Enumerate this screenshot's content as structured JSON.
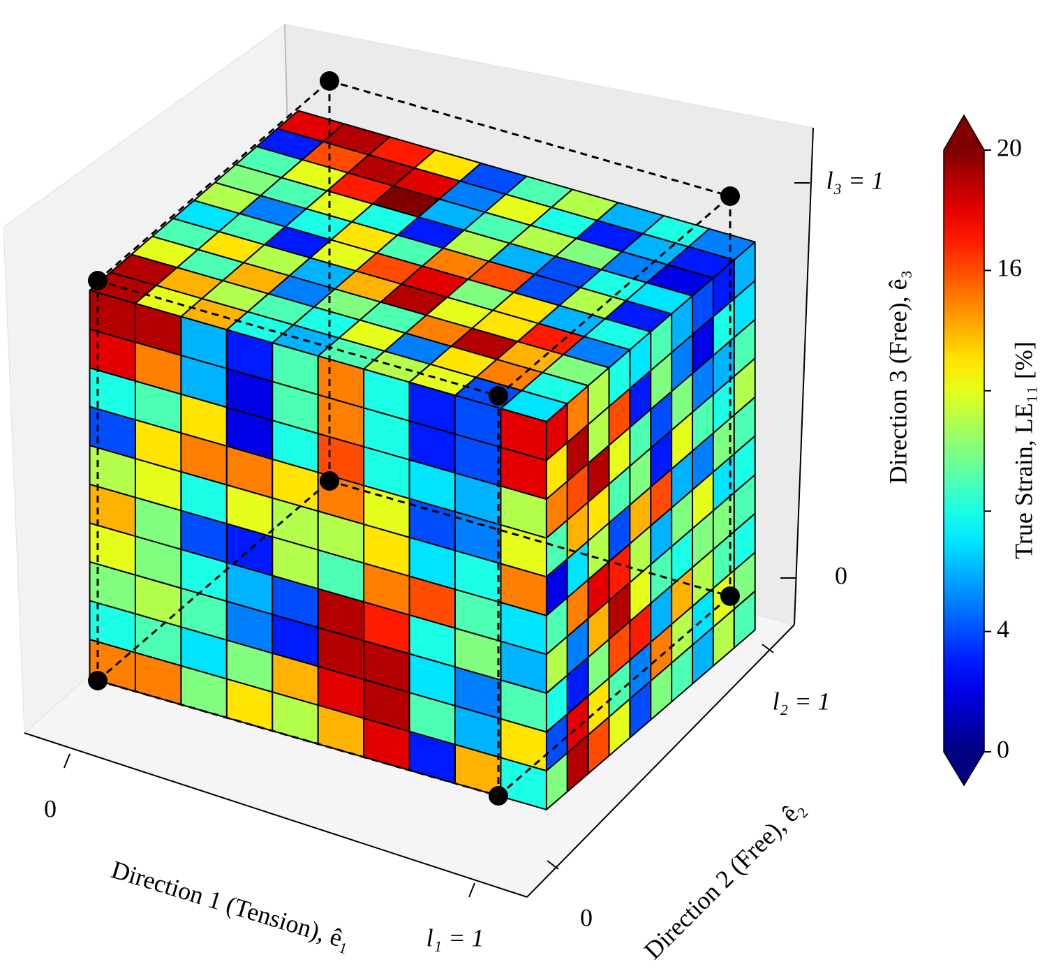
{
  "chart_data": {
    "type": "mesh3d",
    "xlabel": "Direction 1 (Tension), ê₁",
    "ylabel": "Direction 2 (Free), ê₂",
    "zlabel": "Direction 3 (Free), ê₃",
    "xlim": [
      0,
      1
    ],
    "ylim": [
      0,
      1
    ],
    "zlim": [
      0,
      1
    ],
    "xticks": [
      0,
      {
        "value": 1,
        "label": "l₁ = 1"
      }
    ],
    "yticks": [
      0,
      {
        "value": 1,
        "label": "l₂ = 1"
      }
    ],
    "zticks": [
      0,
      {
        "value": 1,
        "label": "l₃ = 1"
      }
    ],
    "colorbar": {
      "label": "True Strain, LE₁₁ [%]",
      "lim": [
        0,
        20
      ],
      "ticks": [
        0,
        4,
        16,
        20
      ],
      "minor_ticks": [
        8,
        12
      ],
      "colormap": "jet",
      "extend": "both"
    },
    "cells": {
      "front": [
        [
          19,
          19,
          6,
          3,
          9,
          15,
          8,
          3,
          4,
          18
        ],
        [
          18,
          15,
          6,
          2,
          9,
          15,
          8,
          3,
          4,
          18
        ],
        [
          8,
          9,
          13,
          2,
          8,
          16,
          8,
          7,
          6,
          11
        ],
        [
          4,
          13,
          15,
          15,
          13,
          15,
          12,
          4,
          5,
          12
        ],
        [
          11,
          12,
          8,
          12,
          11,
          11,
          13,
          7,
          8,
          15
        ],
        [
          14,
          10,
          4,
          3,
          11,
          9,
          15,
          16,
          9,
          7
        ],
        [
          12,
          10,
          8,
          6,
          4,
          19,
          17,
          8,
          10,
          6
        ],
        [
          10,
          11,
          9,
          5,
          3,
          19,
          19,
          7,
          5,
          9
        ],
        [
          8,
          9,
          7,
          10,
          14,
          18,
          19,
          9,
          6,
          13
        ],
        [
          15,
          15,
          10,
          13,
          11,
          14,
          18,
          3,
          14,
          8
        ]
      ],
      "top": [
        [
          18,
          19,
          17,
          13,
          4,
          9,
          11,
          6,
          8,
          5
        ],
        [
          3,
          16,
          19,
          18,
          5,
          12,
          8,
          3,
          6,
          3
        ],
        [
          9,
          12,
          17,
          20,
          6,
          9,
          11,
          10,
          5,
          2
        ],
        [
          10,
          9,
          12,
          8,
          3,
          11,
          6,
          4,
          8,
          7
        ],
        [
          11,
          5,
          8,
          13,
          9,
          15,
          16,
          4,
          11,
          3
        ],
        [
          7,
          9,
          3,
          12,
          16,
          18,
          10,
          13,
          6,
          8
        ],
        [
          9,
          13,
          11,
          6,
          14,
          19,
          12,
          13,
          17,
          5
        ],
        [
          12,
          9,
          14,
          5,
          10,
          9,
          15,
          19,
          14,
          10
        ],
        [
          19,
          14,
          11,
          9,
          8,
          12,
          5,
          13,
          15,
          8
        ],
        [
          19,
          12,
          14,
          8,
          6,
          9,
          11,
          12,
          4,
          7
        ]
      ],
      "side": [
        [
          18,
          15,
          11,
          8,
          7,
          9,
          6,
          4,
          3,
          6
        ],
        [
          13,
          19,
          11,
          16,
          3,
          10,
          5,
          2,
          8,
          7
        ],
        [
          15,
          16,
          19,
          12,
          9,
          4,
          10,
          5,
          6,
          9
        ],
        [
          9,
          14,
          13,
          9,
          10,
          3,
          12,
          9,
          8,
          11
        ],
        [
          2,
          7,
          11,
          4,
          14,
          16,
          6,
          5,
          10,
          9
        ],
        [
          9,
          15,
          18,
          17,
          11,
          6,
          10,
          12,
          7,
          8
        ],
        [
          11,
          5,
          14,
          19,
          12,
          9,
          8,
          10,
          10,
          9
        ],
        [
          8,
          3,
          10,
          16,
          17,
          6,
          14,
          11,
          9,
          8
        ],
        [
          4,
          18,
          13,
          9,
          5,
          15,
          11,
          7,
          12,
          10
        ],
        [
          10,
          19,
          16,
          12,
          4,
          10,
          9,
          6,
          11,
          9
        ]
      ]
    }
  }
}
